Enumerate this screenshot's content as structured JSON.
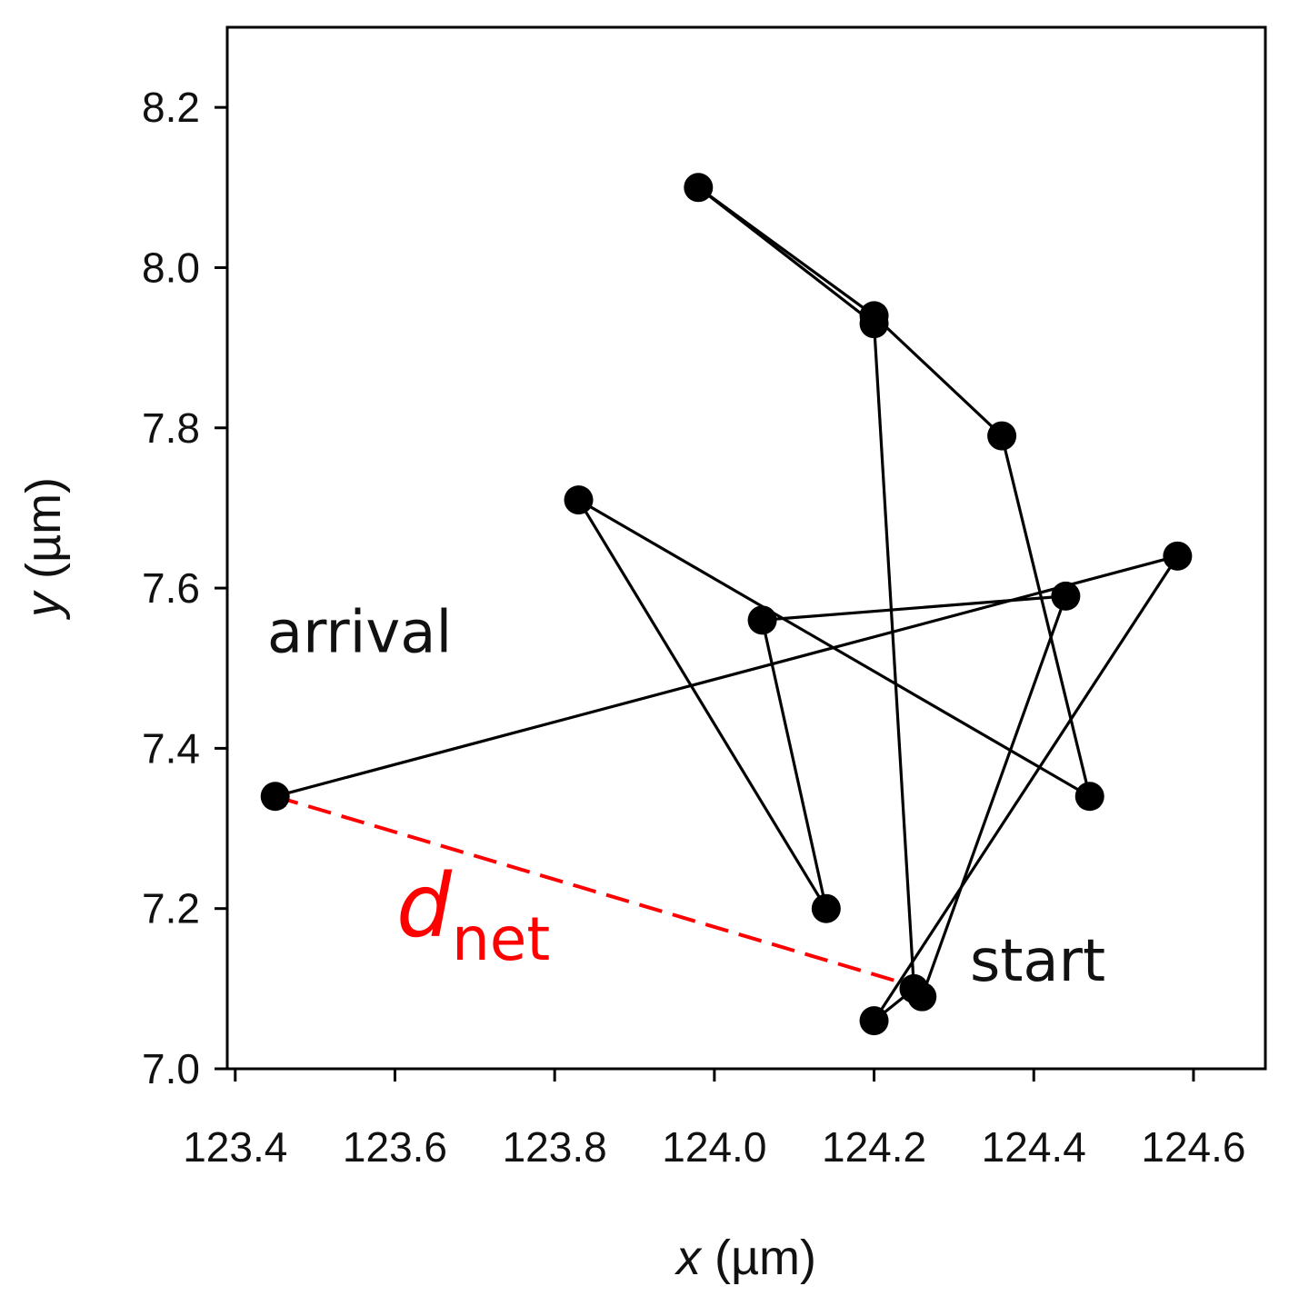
{
  "chart_data": {
    "type": "scatter",
    "xlabel": {
      "var": "x",
      "unit": " (µm)"
    },
    "ylabel": {
      "var": "y",
      "unit": " (µm)"
    },
    "xlim": [
      123.39,
      124.69
    ],
    "ylim": [
      7.0,
      8.3
    ],
    "x_ticks": [
      123.4,
      123.6,
      123.8,
      124.0,
      124.2,
      124.4,
      124.6
    ],
    "x_tick_labels": [
      "123.4",
      "123.6",
      "123.8",
      "124.0",
      "124.2",
      "124.4",
      "124.6"
    ],
    "y_ticks": [
      7.0,
      7.2,
      7.4,
      7.6,
      7.8,
      8.0,
      8.2
    ],
    "y_tick_labels": [
      "7.0",
      "7.2",
      "7.4",
      "7.6",
      "7.8",
      "8.0",
      "8.2"
    ],
    "grid": false,
    "series": [
      {
        "style": "line+markers",
        "color": "#000000",
        "points": [
          {
            "x": 124.26,
            "y": 7.09
          },
          {
            "x": 124.44,
            "y": 7.59
          },
          {
            "x": 124.06,
            "y": 7.56
          },
          {
            "x": 124.14,
            "y": 7.2
          },
          {
            "x": 123.83,
            "y": 7.71
          },
          {
            "x": 124.47,
            "y": 7.34
          },
          {
            "x": 124.36,
            "y": 7.79
          },
          {
            "x": 124.2,
            "y": 7.94
          },
          {
            "x": 123.98,
            "y": 8.1
          },
          {
            "x": 124.2,
            "y": 7.93
          },
          {
            "x": 124.25,
            "y": 7.1
          },
          {
            "x": 124.2,
            "y": 7.06
          },
          {
            "x": 124.58,
            "y": 7.64
          },
          {
            "x": 123.45,
            "y": 7.34
          }
        ]
      }
    ],
    "annotations": [
      {
        "text": "arrival",
        "x": 123.44,
        "y": 7.52
      },
      {
        "text": "start",
        "x": 124.32,
        "y": 7.11
      }
    ],
    "distance_arrow": {
      "color": "#ff0000",
      "from": {
        "x": 123.45,
        "y": 7.34
      },
      "to": {
        "x": 124.26,
        "y": 7.1
      },
      "label_main": "d",
      "label_sub": "net"
    }
  }
}
